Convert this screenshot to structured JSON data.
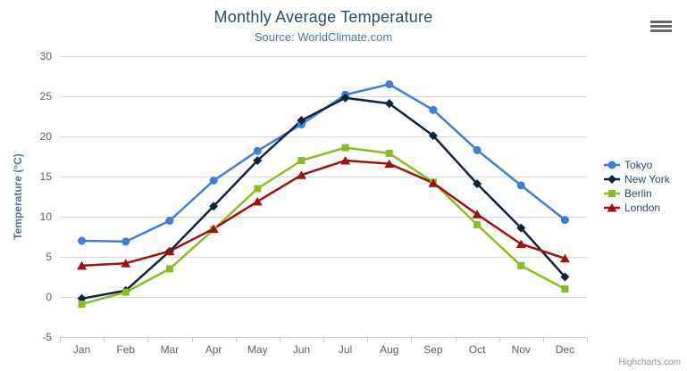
{
  "chart_data": {
    "type": "line",
    "title": "Monthly Average Temperature",
    "subtitle": "Source: WorldClimate.com",
    "xlabel": "",
    "ylabel": "Temperature (°C)",
    "categories": [
      "Jan",
      "Feb",
      "Mar",
      "Apr",
      "May",
      "Jun",
      "Jul",
      "Aug",
      "Sep",
      "Oct",
      "Nov",
      "Dec"
    ],
    "series": [
      {
        "name": "Tokyo",
        "color": "#3a7fd9",
        "marker": "circle",
        "values": [
          7.0,
          6.9,
          9.5,
          14.5,
          18.2,
          21.5,
          25.2,
          26.5,
          23.3,
          18.3,
          13.9,
          9.6
        ]
      },
      {
        "name": "New York",
        "color": "#0d233a",
        "marker": "diamond",
        "values": [
          -0.2,
          0.8,
          5.7,
          11.3,
          17.0,
          22.0,
          24.8,
          24.1,
          20.1,
          14.1,
          8.6,
          2.5
        ]
      },
      {
        "name": "Berlin",
        "color": "#8bbc21",
        "marker": "square",
        "values": [
          -0.9,
          0.6,
          3.5,
          8.4,
          13.5,
          17.0,
          18.6,
          17.9,
          14.3,
          9.0,
          3.9,
          1.0
        ]
      },
      {
        "name": "London",
        "color": "#a01010",
        "marker": "triangle",
        "values": [
          3.9,
          4.2,
          5.7,
          8.5,
          11.9,
          15.2,
          17.0,
          16.6,
          14.2,
          10.3,
          6.6,
          4.8
        ]
      }
    ],
    "ylim": [
      -5,
      30
    ],
    "yticks": [
      -5,
      0,
      5,
      10,
      15,
      20,
      25,
      30
    ],
    "grid": true,
    "legend_position": "right"
  },
  "credits_label": "Highcharts.com",
  "icons": {
    "context_menu": "hamburger-icon"
  },
  "colors": {
    "title_color": "#274b6d",
    "subtitle_color": "#4d759e",
    "legend_text_color": "#274b6d",
    "tick_label_color": "#606060",
    "grid_color": "#d8d8d8",
    "axis_color": "#c0d0e0",
    "burger_color": "#666666",
    "credits_color": "#909090",
    "background": "#ffffff"
  }
}
